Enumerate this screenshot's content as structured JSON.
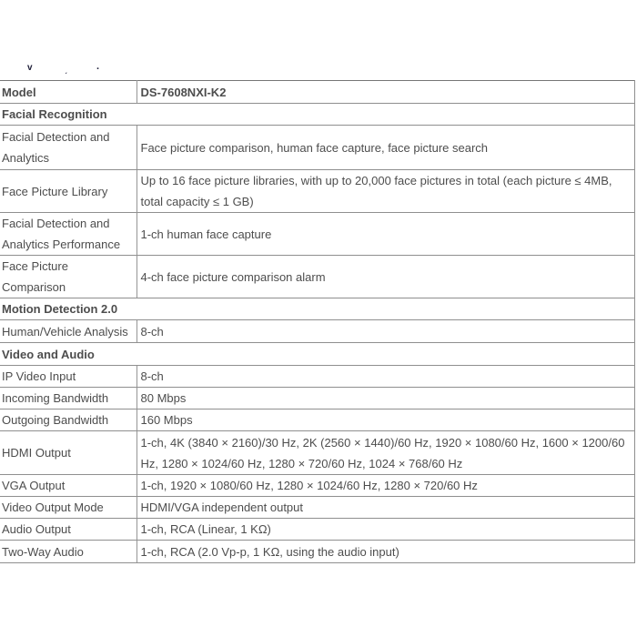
{
  "page": {
    "background": "#ffffff"
  },
  "colors": {
    "border": "#8f8f8f",
    "text": "#4d4d4d",
    "bold_text": "#303030"
  },
  "fragments": [
    "v",
    "ˏ",
    "."
  ],
  "table": {
    "rows": [
      {
        "type": "kv",
        "bold": true,
        "label": "Model",
        "value": "DS-7608NXI-K2"
      },
      {
        "type": "section",
        "label": "Facial Recognition"
      },
      {
        "type": "kv",
        "label": "Facial Detection and Analytics",
        "value": "Face picture comparison, human face capture, face picture search"
      },
      {
        "type": "kv",
        "label": "Face Picture Library",
        "value": "Up to 16 face picture libraries, with up to 20,000 face pictures in total (each picture ≤ 4MB, total capacity ≤ 1 GB)"
      },
      {
        "type": "kv",
        "label": "Facial Detection and Analytics Performance",
        "value": "1-ch human face capture"
      },
      {
        "type": "kv",
        "label": "Face Picture Comparison",
        "value": "4-ch face picture comparison alarm"
      },
      {
        "type": "section",
        "label": "Motion Detection 2.0"
      },
      {
        "type": "kv",
        "label": "Human/Vehicle Analysis",
        "value": "8-ch"
      },
      {
        "type": "section",
        "label": "Video and Audio"
      },
      {
        "type": "kv",
        "label": "IP Video Input",
        "value": "8-ch"
      },
      {
        "type": "kv",
        "label": "Incoming Bandwidth",
        "value": "80 Mbps"
      },
      {
        "type": "kv",
        "label": "Outgoing Bandwidth",
        "value": "160 Mbps"
      },
      {
        "type": "kv",
        "label": "HDMI Output",
        "value": "1-ch, 4K (3840 × 2160)/30 Hz, 2K (2560 × 1440)/60 Hz, 1920 × 1080/60 Hz, 1600 × 1200/60 Hz, 1280 × 1024/60 Hz, 1280 × 720/60 Hz, 1024 × 768/60 Hz"
      },
      {
        "type": "kv",
        "label": "VGA Output",
        "value": "1-ch, 1920 × 1080/60 Hz, 1280 × 1024/60 Hz, 1280 × 720/60 Hz"
      },
      {
        "type": "kv",
        "label": "Video Output Mode",
        "value": "HDMI/VGA independent output"
      },
      {
        "type": "kv",
        "label": "Audio Output",
        "value": "1-ch, RCA (Linear, 1 KΩ)"
      },
      {
        "type": "kv",
        "label": "Two-Way Audio",
        "value": "1-ch, RCA (2.0 Vp-p, 1 KΩ, using the audio input)"
      }
    ]
  }
}
